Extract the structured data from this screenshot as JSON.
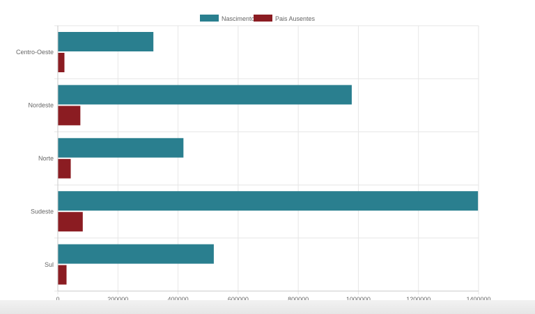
{
  "chart_data": {
    "type": "bar",
    "orientation": "horizontal",
    "categories": [
      "Centro-Oeste",
      "Nordeste",
      "Norte",
      "Sudeste",
      "Sul"
    ],
    "series": [
      {
        "name": "Nascimento",
        "color": "#2a7f8f",
        "values": [
          318000,
          978000,
          418000,
          1398000,
          519000
        ]
      },
      {
        "name": "Pais Ausentes",
        "color": "#8b1c22",
        "values": [
          22000,
          75000,
          43000,
          83000,
          29000
        ]
      }
    ],
    "xlim": [
      0,
      1400000
    ],
    "x_ticks": [
      "0",
      "200000",
      "400000",
      "600000",
      "800000",
      "1000000",
      "1200000",
      "1400000"
    ],
    "title": "",
    "xlabel": "",
    "ylabel": "",
    "grid": true,
    "legend_position": "top-center"
  }
}
